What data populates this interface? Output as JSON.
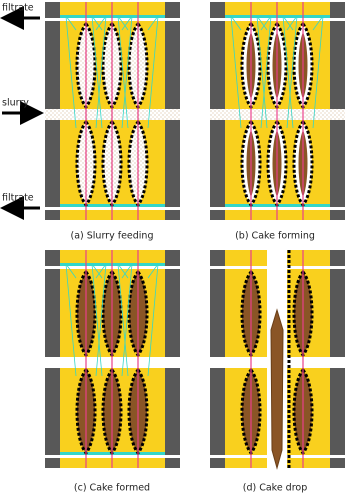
{
  "labels": {
    "filtrate_top": "filtrate",
    "slurry": "slurry",
    "filtrate_bottom": "filtrate"
  },
  "captions": [
    "(a) Slurry feeding",
    "(b) Cake forming",
    "(c) Cake formed",
    "(d) Cake drop"
  ]
}
